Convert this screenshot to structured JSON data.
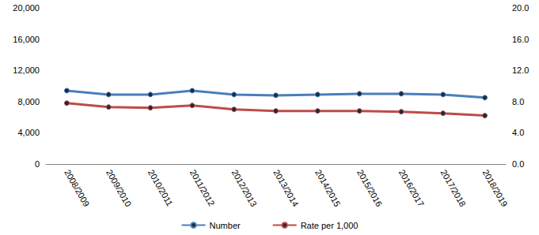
{
  "chart_data": {
    "type": "line",
    "categories": [
      "2008/2009",
      "2009/2010",
      "2010/2011",
      "2011/2012",
      "2012/2013",
      "2013/2014",
      "2014/2015",
      "2015/2016",
      "2016/2017",
      "2017/2018",
      "2018/2019"
    ],
    "series": [
      {
        "name": "Number",
        "color": "#4a7ebb",
        "marker": "circle",
        "values": [
          9400,
          8900,
          8900,
          9400,
          8900,
          8800,
          8900,
          9000,
          9000,
          8900,
          8500
        ]
      },
      {
        "name": "Rate per 1,000",
        "color": "#be4b48",
        "marker": "circle",
        "axis": "y2",
        "values": [
          7.8,
          7.3,
          7.2,
          7.5,
          7.0,
          6.8,
          6.8,
          6.8,
          6.7,
          6.5,
          6.2
        ]
      }
    ],
    "ylim": [
      0,
      20000
    ],
    "yticks": [
      0,
      {
        "value": 4000,
        "label": "4,000"
      },
      {
        "value": 8000,
        "label": "8,000"
      },
      {
        "value": 12000,
        "label": "12,000"
      },
      {
        "value": 16000,
        "label": "16,000"
      },
      {
        "value": 20000,
        "label": "20,000"
      }
    ],
    "y2lim": [
      0,
      20
    ],
    "y2ticks": [
      {
        "value": 0,
        "label": "0.0"
      },
      {
        "value": 4,
        "label": "4.0"
      },
      {
        "value": 8,
        "label": "8.0"
      },
      {
        "value": 12,
        "label": "12.0"
      },
      {
        "value": 16,
        "label": "16.0"
      },
      {
        "value": 20,
        "label": "20.0"
      }
    ],
    "grid": false,
    "legend": "bottom"
  }
}
